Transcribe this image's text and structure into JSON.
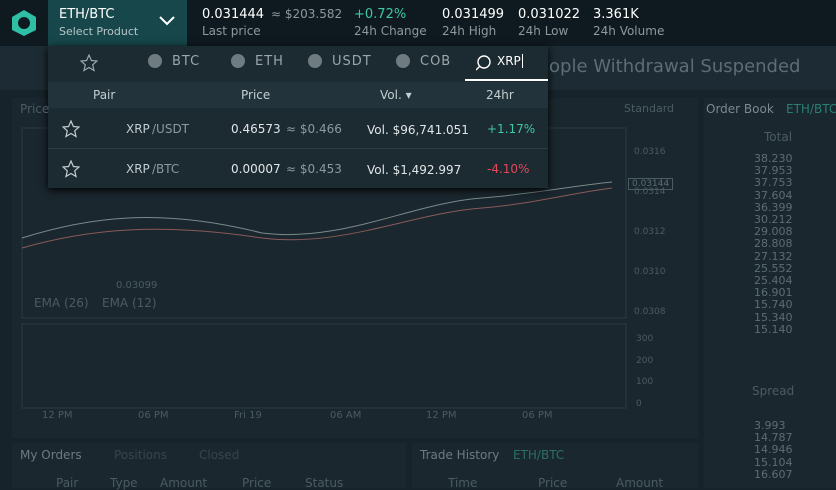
{
  "header": {
    "pair": "ETH/BTC",
    "select": "Select Product",
    "last_price": "0.031444",
    "last_price_usd": "≈ $203.582",
    "last_price_label": "Last price",
    "change": "+0.72%",
    "change_label": "24h Change",
    "high": "0.031499",
    "high_label": "24h High",
    "low": "0.031022",
    "low_label": "24h Low",
    "volume": "3.361K",
    "volume_label": "24h Volume"
  },
  "banner": "ople Withdrawal Suspended",
  "dropdown": {
    "tabs": [
      "BTC",
      "ETH",
      "USDT",
      "COB"
    ],
    "search": "XRP",
    "columns": [
      "Pair",
      "Price",
      "Vol. ▾",
      "24hr"
    ],
    "rows": [
      {
        "base": "XRP",
        "quote": "/USDT",
        "price": "0.46573",
        "price_usd": "≈ $0.466",
        "volume": "Vol. $96,741.051",
        "change": "+1.17%"
      },
      {
        "base": "XRP",
        "quote": "/BTC",
        "price": "0.00007",
        "price_usd": "≈ $0.453",
        "volume": "Vol. $1,492.997",
        "change": "-4.10%"
      }
    ]
  },
  "chart_panel": {
    "label": "Price",
    "toolbar": "Standard",
    "min_label": "0.03099",
    "ema_labels": [
      "EMA (26)",
      "EMA (12)"
    ],
    "price_ticks": [
      "0.0316",
      "0.0314",
      "0.0312",
      "0.0310",
      "0.0308"
    ],
    "current_price": "0.03144",
    "volume_ticks": [
      "300",
      "200",
      "100",
      "0"
    ],
    "time_ticks": [
      "12 PM",
      "06 PM",
      "Fri 19",
      "06 AM",
      "12 PM",
      "06 PM"
    ]
  },
  "order_book": {
    "title": "Order Book",
    "pair": "ETH/BTC",
    "column": "Total",
    "asks": [
      "38.230",
      "37.953",
      "37.753",
      "37.604",
      "36.399",
      "30.212",
      "29.008",
      "28.808",
      "27.132",
      "25.552",
      "25.404",
      "16.901",
      "15.740",
      "15.340",
      "15.140"
    ],
    "spread": "Spread",
    "bids": [
      "3.993",
      "14.787",
      "14.946",
      "15.104",
      "16.607"
    ]
  },
  "orders": {
    "tabs": [
      "My Orders",
      "Positions",
      "Closed"
    ],
    "columns": [
      "Pair",
      "Type",
      "Amount",
      "Price",
      "Status"
    ]
  },
  "trade_history": {
    "title": "Trade History",
    "pair": "ETH/BTC",
    "columns": [
      "Time",
      "Price",
      "Amount"
    ]
  }
}
